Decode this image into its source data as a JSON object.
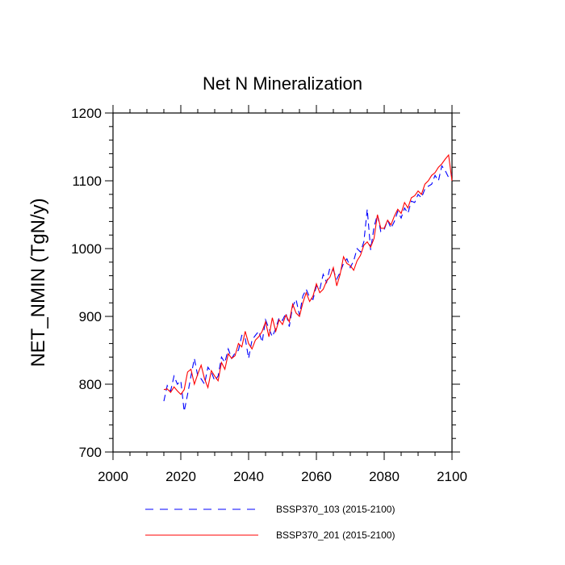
{
  "chart_data": {
    "type": "line",
    "title": "Net N Mineralization",
    "xlabel": "",
    "ylabel": "NET_NMIN  (TgN/y)",
    "xlim": [
      2000,
      2100
    ],
    "ylim": [
      700,
      1200
    ],
    "xticks": [
      2000,
      2020,
      2040,
      2060,
      2080,
      2100
    ],
    "yticks": [
      700,
      800,
      900,
      1000,
      1100,
      1200
    ],
    "x": [
      2015,
      2016,
      2017,
      2018,
      2019,
      2020,
      2021,
      2022,
      2023,
      2024,
      2025,
      2026,
      2027,
      2028,
      2029,
      2030,
      2031,
      2032,
      2033,
      2034,
      2035,
      2036,
      2037,
      2038,
      2039,
      2040,
      2041,
      2042,
      2043,
      2044,
      2045,
      2046,
      2047,
      2048,
      2049,
      2050,
      2051,
      2052,
      2053,
      2054,
      2055,
      2056,
      2057,
      2058,
      2059,
      2060,
      2061,
      2062,
      2063,
      2064,
      2065,
      2066,
      2067,
      2068,
      2069,
      2070,
      2071,
      2072,
      2073,
      2074,
      2075,
      2076,
      2077,
      2078,
      2079,
      2080,
      2081,
      2082,
      2083,
      2084,
      2085,
      2086,
      2087,
      2088,
      2089,
      2090,
      2091,
      2092,
      2093,
      2094,
      2095,
      2096,
      2097,
      2098,
      2099,
      2100
    ],
    "series": [
      {
        "name": "BSSP370_103 (2015-2100)",
        "color": "#0000ff",
        "style": "dashed",
        "values": [
          775,
          798,
          790,
          812,
          800,
          805,
          760,
          785,
          812,
          838,
          812,
          808,
          800,
          825,
          818,
          805,
          812,
          840,
          832,
          852,
          838,
          846,
          850,
          872,
          868,
          838,
          865,
          872,
          878,
          862,
          895,
          882,
          870,
          882,
          898,
          894,
          905,
          885,
          915,
          925,
          902,
          930,
          940,
          928,
          925,
          945,
          940,
          962,
          950,
          972,
          968,
          955,
          965,
          978,
          985,
          972,
          982,
          1000,
          995,
          1010,
          1058,
          998,
          1032,
          1050,
          1025,
          1028,
          1042,
          1030,
          1040,
          1055,
          1045,
          1060,
          1052,
          1070,
          1068,
          1080,
          1075,
          1088,
          1092,
          1095,
          1108,
          1100,
          1122,
          1115,
          1105,
          1110
        ]
      },
      {
        "name": "BSSP370_201 (2015-2100)",
        "color": "#ff0000",
        "style": "solid",
        "values": [
          792,
          793,
          788,
          796,
          790,
          785,
          792,
          818,
          822,
          800,
          815,
          828,
          808,
          795,
          820,
          812,
          805,
          832,
          822,
          845,
          838,
          842,
          860,
          855,
          878,
          860,
          852,
          865,
          870,
          878,
          892,
          870,
          898,
          878,
          895,
          888,
          902,
          892,
          918,
          905,
          900,
          920,
          935,
          922,
          930,
          948,
          935,
          940,
          952,
          958,
          972,
          945,
          962,
          988,
          978,
          975,
          968,
          982,
          990,
          1005,
          1010,
          1002,
          1015,
          1050,
          1030,
          1030,
          1042,
          1035,
          1048,
          1058,
          1052,
          1068,
          1060,
          1075,
          1078,
          1085,
          1080,
          1095,
          1100,
          1108,
          1112,
          1120,
          1125,
          1132,
          1138,
          1100
        ]
      }
    ],
    "legend": [
      "BSSP370_103 (2015-2100)",
      "BSSP370_201 (2015-2100)"
    ],
    "legend_position": "bottom",
    "grid": false
  }
}
